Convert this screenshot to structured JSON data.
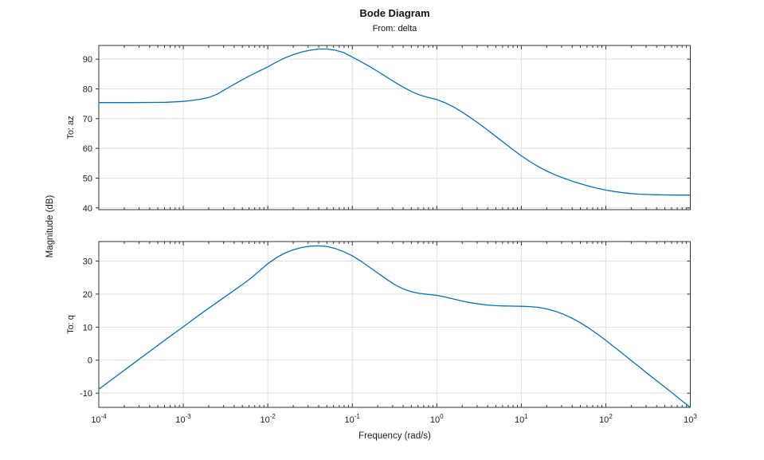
{
  "chart_data": {
    "type": "line",
    "title": "Bode Diagram",
    "subtitle": "From: delta",
    "xlabel": "Frequency (rad/s)",
    "ylabel": "Magnitude (dB)",
    "xscale": "log",
    "xlim_log10": [
      -4,
      3
    ],
    "xtick_exponents": [
      -4,
      -3,
      -2,
      -1,
      0,
      1,
      2,
      3
    ],
    "grid": true,
    "legend": false,
    "curve_color": "#0072BD",
    "grid_color": "#e0e0e0",
    "axis_color": "#333333",
    "text_color": "#1a1a1a",
    "subplots": [
      {
        "row_label": "To: az",
        "ylim": [
          39.4,
          94.6
        ],
        "yticks": [
          40,
          50,
          60,
          70,
          80,
          90
        ],
        "series": [
          {
            "id": "az",
            "name": "az/delta magnitude",
            "color": "#0072BD",
            "points_log10w_db": [
              [
                -4.0,
                75.4
              ],
              [
                -3.8,
                75.4
              ],
              [
                -3.6,
                75.4
              ],
              [
                -3.4,
                75.45
              ],
              [
                -3.2,
                75.5
              ],
              [
                -3.0,
                75.8
              ],
              [
                -2.9,
                76.1
              ],
              [
                -2.8,
                76.5
              ],
              [
                -2.7,
                77.1
              ],
              [
                -2.6,
                78.2
              ],
              [
                -2.5,
                79.9
              ],
              [
                -2.4,
                81.5
              ],
              [
                -2.3,
                83.1
              ],
              [
                -2.2,
                84.6
              ],
              [
                -2.1,
                86.0
              ],
              [
                -2.0,
                87.4
              ],
              [
                -1.9,
                89.0
              ],
              [
                -1.8,
                90.4
              ],
              [
                -1.7,
                91.5
              ],
              [
                -1.6,
                92.4
              ],
              [
                -1.5,
                93.0
              ],
              [
                -1.4,
                93.4
              ],
              [
                -1.3,
                93.4
              ],
              [
                -1.2,
                93.0
              ],
              [
                -1.1,
                92.2
              ],
              [
                -1.0,
                90.7
              ],
              [
                -0.9,
                89.2
              ],
              [
                -0.8,
                87.6
              ],
              [
                -0.7,
                85.9
              ],
              [
                -0.6,
                84.1
              ],
              [
                -0.5,
                82.3
              ],
              [
                -0.4,
                80.6
              ],
              [
                -0.3,
                79.1
              ],
              [
                -0.2,
                77.9
              ],
              [
                -0.1,
                77.1
              ],
              [
                0.0,
                76.4
              ],
              [
                0.1,
                75.3
              ],
              [
                0.2,
                73.9
              ],
              [
                0.3,
                72.2
              ],
              [
                0.4,
                70.3
              ],
              [
                0.5,
                68.3
              ],
              [
                0.6,
                66.2
              ],
              [
                0.7,
                64.0
              ],
              [
                0.8,
                61.8
              ],
              [
                0.9,
                59.6
              ],
              [
                1.0,
                57.5
              ],
              [
                1.1,
                55.6
              ],
              [
                1.2,
                53.9
              ],
              [
                1.3,
                52.4
              ],
              [
                1.4,
                51.1
              ],
              [
                1.5,
                50.0
              ],
              [
                1.6,
                49.0
              ],
              [
                1.7,
                48.1
              ],
              [
                1.8,
                47.3
              ],
              [
                1.9,
                46.6
              ],
              [
                2.0,
                46.0
              ],
              [
                2.1,
                45.5
              ],
              [
                2.2,
                45.1
              ],
              [
                2.3,
                44.8
              ],
              [
                2.4,
                44.6
              ],
              [
                2.5,
                44.5
              ],
              [
                2.6,
                44.4
              ],
              [
                2.7,
                44.35
              ],
              [
                2.8,
                44.3
              ],
              [
                2.9,
                44.3
              ],
              [
                3.0,
                44.3
              ]
            ]
          }
        ]
      },
      {
        "row_label": "To: q",
        "ylim": [
          -14.3,
          35.9
        ],
        "yticks": [
          -10,
          0,
          10,
          20,
          30
        ],
        "series": [
          {
            "id": "q",
            "name": "q/delta magnitude",
            "color": "#0072BD",
            "points_log10w_db": [
              [
                -4.0,
                -8.8
              ],
              [
                -3.8,
                -5.0
              ],
              [
                -3.6,
                -1.2
              ],
              [
                -3.4,
                2.6
              ],
              [
                -3.2,
                6.4
              ],
              [
                -3.0,
                10.1
              ],
              [
                -2.9,
                12.0
              ],
              [
                -2.8,
                13.9
              ],
              [
                -2.7,
                15.7
              ],
              [
                -2.6,
                17.5
              ],
              [
                -2.5,
                19.3
              ],
              [
                -2.4,
                21.1
              ],
              [
                -2.3,
                22.9
              ],
              [
                -2.2,
                24.8
              ],
              [
                -2.1,
                27.0
              ],
              [
                -2.0,
                29.2
              ],
              [
                -1.9,
                31.0
              ],
              [
                -1.8,
                32.4
              ],
              [
                -1.7,
                33.4
              ],
              [
                -1.6,
                34.1
              ],
              [
                -1.5,
                34.5
              ],
              [
                -1.4,
                34.6
              ],
              [
                -1.3,
                34.4
              ],
              [
                -1.2,
                33.8
              ],
              [
                -1.1,
                32.8
              ],
              [
                -1.0,
                31.6
              ],
              [
                -0.9,
                30.0
              ],
              [
                -0.8,
                28.2
              ],
              [
                -0.7,
                26.4
              ],
              [
                -0.6,
                24.6
              ],
              [
                -0.5,
                22.9
              ],
              [
                -0.4,
                21.6
              ],
              [
                -0.3,
                20.7
              ],
              [
                -0.2,
                20.2
              ],
              [
                -0.1,
                19.9
              ],
              [
                0.0,
                19.6
              ],
              [
                0.1,
                19.1
              ],
              [
                0.2,
                18.5
              ],
              [
                0.3,
                17.9
              ],
              [
                0.4,
                17.4
              ],
              [
                0.5,
                17.0
              ],
              [
                0.6,
                16.7
              ],
              [
                0.7,
                16.5
              ],
              [
                0.8,
                16.4
              ],
              [
                0.9,
                16.35
              ],
              [
                1.0,
                16.3
              ],
              [
                1.1,
                16.2
              ],
              [
                1.2,
                16.0
              ],
              [
                1.3,
                15.5
              ],
              [
                1.4,
                14.8
              ],
              [
                1.5,
                13.9
              ],
              [
                1.6,
                12.7
              ],
              [
                1.7,
                11.3
              ],
              [
                1.8,
                9.7
              ],
              [
                1.9,
                7.9
              ],
              [
                2.0,
                6.0
              ],
              [
                2.1,
                4.0
              ],
              [
                2.2,
                2.0
              ],
              [
                2.3,
                -0.1
              ],
              [
                2.4,
                -2.1
              ],
              [
                2.5,
                -4.2
              ],
              [
                2.6,
                -6.2
              ],
              [
                2.7,
                -8.2
              ],
              [
                2.8,
                -10.2
              ],
              [
                2.9,
                -12.3
              ],
              [
                3.0,
                -14.3
              ]
            ]
          }
        ]
      }
    ]
  }
}
